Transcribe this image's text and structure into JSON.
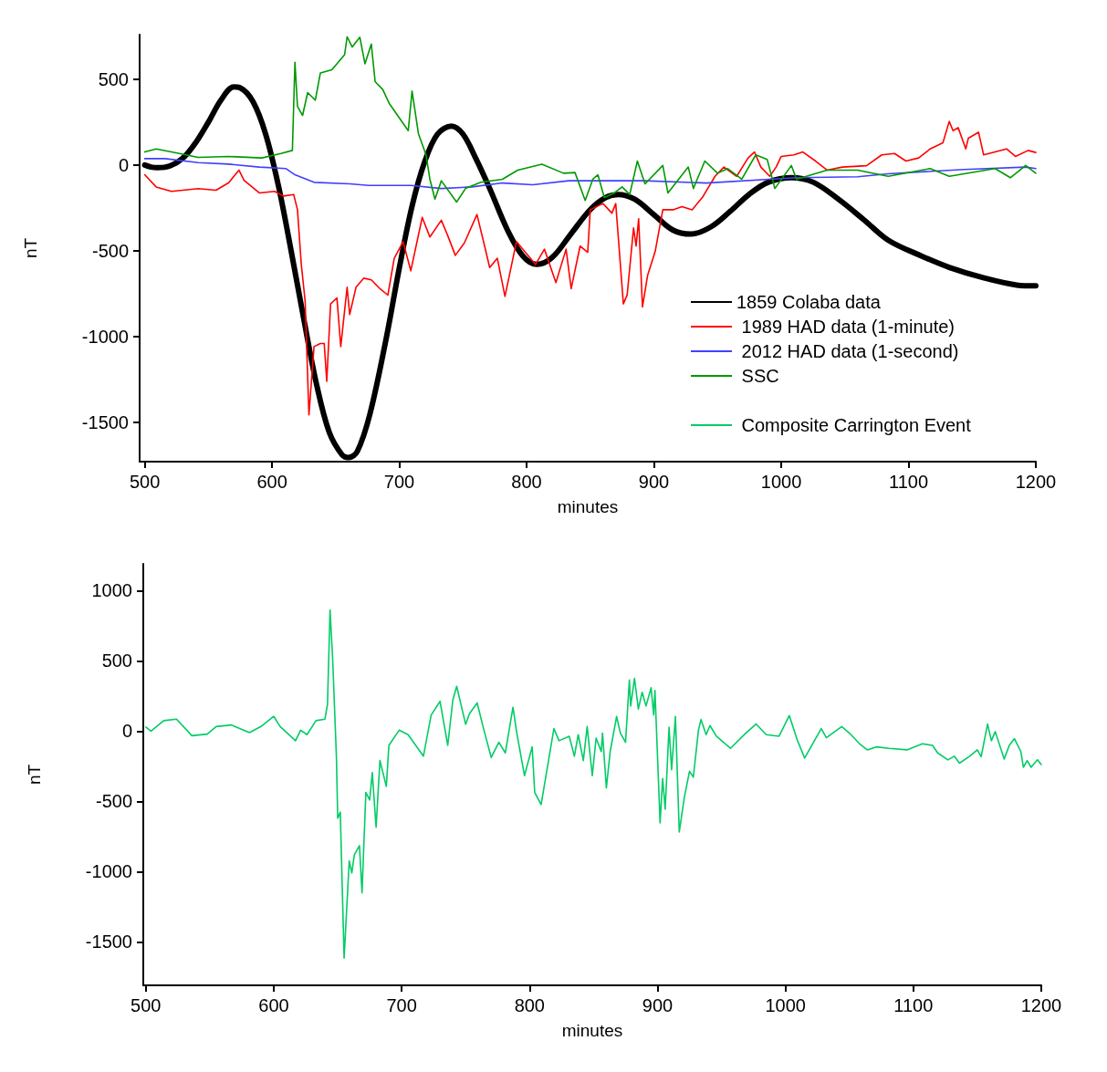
{
  "chart_data": [
    {
      "type": "line",
      "xlabel": "minutes",
      "ylabel": "nT",
      "xlim": [
        496,
        1200
      ],
      "ylim": [
        -1730,
        760
      ],
      "xticks": [
        500,
        600,
        700,
        800,
        900,
        1000,
        1100,
        1200
      ],
      "yticks": [
        -1500,
        -1000,
        -500,
        0,
        500
      ],
      "grid": false,
      "legend": "bottom right",
      "marker": "none",
      "line_style": "solid",
      "series": [
        {
          "name": "1859 Colaba data",
          "color": "#000000",
          "x": [
            500,
            505,
            510,
            520,
            530,
            540,
            550,
            560,
            570,
            575,
            585,
            595,
            605,
            615,
            625,
            635,
            645,
            655,
            660,
            667,
            677,
            690,
            700,
            710,
            720,
            730,
            741,
            750,
            760,
            771,
            785,
            797,
            808,
            820,
            835,
            850,
            862,
            872,
            885,
            900,
            915,
            929,
            945,
            960,
            975,
            990,
            1008,
            1025,
            1045,
            1065,
            1084,
            1110,
            1132,
            1160,
            1185,
            1200
          ],
          "values": [
            0,
            -12,
            -16,
            -5,
            40,
            130,
            250,
            380,
            455,
            450,
            370,
            180,
            -120,
            -500,
            -900,
            -1280,
            -1560,
            -1690,
            -1706,
            -1670,
            -1450,
            -1000,
            -600,
            -240,
            20,
            180,
            227,
            180,
            40,
            -137,
            -380,
            -530,
            -580,
            -540,
            -400,
            -260,
            -190,
            -172,
            -200,
            -290,
            -380,
            -403,
            -360,
            -270,
            -170,
            -100,
            -74,
            -100,
            -200,
            -320,
            -438,
            -530,
            -597,
            -660,
            -700,
            -705
          ]
        },
        {
          "name": " 1989 HAD data (1-minute)",
          "color": "#ff0000",
          "x": [
            500,
            509,
            521,
            542,
            556,
            566,
            574,
            578,
            590,
            602,
            609,
            617,
            620,
            623,
            626,
            629,
            633,
            638,
            641,
            643,
            646,
            651,
            654,
            659,
            661,
            666,
            672,
            678,
            685,
            691,
            696,
            703,
            709,
            718,
            724,
            733,
            738,
            744,
            751,
            761,
            767,
            771,
            777,
            783,
            792,
            799,
            807,
            814,
            823,
            831,
            835,
            842,
            848,
            850,
            860,
            867,
            870,
            876,
            879,
            884,
            886,
            888,
            891,
            895,
            901,
            907,
            915,
            922,
            930,
            938,
            948,
            955,
            965,
            974,
            979,
            984,
            991,
            996,
            1000,
            1010,
            1017,
            1027,
            1036,
            1048,
            1067,
            1079,
            1089,
            1098,
            1108,
            1117,
            1127,
            1132,
            1135,
            1139,
            1145,
            1147,
            1155,
            1159,
            1168,
            1177,
            1184,
            1194,
            1200
          ],
          "values": [
            -57,
            -128,
            -154,
            -138,
            -147,
            -103,
            -30,
            -89,
            -163,
            -154,
            -181,
            -172,
            -261,
            -580,
            -793,
            -1457,
            -1059,
            -1041,
            -1041,
            -1262,
            -810,
            -775,
            -1059,
            -713,
            -872,
            -713,
            -660,
            -670,
            -723,
            -759,
            -544,
            -447,
            -617,
            -305,
            -420,
            -322,
            -411,
            -527,
            -456,
            -289,
            -473,
            -598,
            -544,
            -766,
            -447,
            -509,
            -580,
            -491,
            -686,
            -491,
            -721,
            -473,
            -509,
            -261,
            -225,
            -281,
            -225,
            -810,
            -757,
            -367,
            -473,
            -314,
            -828,
            -645,
            -504,
            -261,
            -261,
            -243,
            -261,
            -190,
            -66,
            -12,
            -66,
            41,
            76,
            -12,
            -66,
            -12,
            50,
            59,
            76,
            23,
            -30,
            -12,
            -4,
            59,
            67,
            23,
            41,
            94,
            129,
            254,
            200,
            218,
            94,
            156,
            191,
            59,
            76,
            94,
            50,
            85,
            73
          ]
        },
        {
          "name": " 2012 HAD data (1-second)",
          "color": "#4040ff",
          "x": [
            500,
            516,
            542,
            566,
            590,
            611,
            618,
            633,
            661,
            676,
            709,
            733,
            757,
            781,
            805,
            833,
            893,
            941,
            1012,
            1060,
            1084,
            1144,
            1192,
            1200
          ],
          "values": [
            37,
            37,
            14,
            5,
            -12,
            -21,
            -57,
            -101,
            -110,
            -119,
            -119,
            -137,
            -128,
            -105,
            -115,
            -92,
            -92,
            -105,
            -74,
            -69,
            -51,
            -26,
            -12,
            -21
          ]
        },
        {
          "name": " SSC",
          "color": "#009900",
          "x": [
            500,
            509,
            521,
            542,
            566,
            592,
            607,
            616,
            618,
            620,
            624,
            628,
            634,
            638,
            647,
            657,
            659,
            663,
            669,
            673,
            678,
            681,
            687,
            692,
            707,
            710,
            715,
            721,
            724,
            728,
            733,
            745,
            752,
            764,
            781,
            793,
            812,
            829,
            838,
            846,
            852,
            856,
            861,
            869,
            875,
            881,
            887,
            893,
            907,
            911,
            927,
            931,
            940,
            950,
            958,
            969,
            980,
            989,
            995,
            1008,
            1012,
            1036,
            1060,
            1084,
            1117,
            1132,
            1168,
            1180,
            1192,
            1200
          ],
          "values": [
            76,
            94,
            76,
            44,
            50,
            41,
            67,
            85,
            599,
            342,
            289,
            422,
            378,
            537,
            555,
            643,
            748,
            688,
            745,
            590,
            705,
            486,
            440,
            360,
            200,
            431,
            183,
            59,
            -83,
            -199,
            -92,
            -216,
            -137,
            -101,
            -83,
            -30,
            5,
            -48,
            -44,
            -207,
            -83,
            -57,
            -190,
            -163,
            -128,
            -172,
            23,
            -110,
            -3,
            -163,
            -12,
            -137,
            23,
            -48,
            -21,
            -83,
            59,
            32,
            -137,
            -3,
            -83,
            -30,
            -30,
            -66,
            -21,
            -66,
            -21,
            -74,
            -3,
            -48
          ]
        }
      ]
    },
    {
      "type": "line",
      "xlabel": "minutes",
      "ylabel": "nT",
      "xlim": [
        498,
        1200
      ],
      "ylim": [
        -1810,
        1190
      ],
      "xticks": [
        500,
        600,
        700,
        800,
        900,
        1000,
        1100,
        1200
      ],
      "yticks": [
        -1500,
        -1000,
        -500,
        0,
        500,
        1000
      ],
      "grid": false,
      "legend": "top right",
      "marker": "none",
      "line_style": "solid",
      "series": [
        {
          "name": "Composite Carrington Event",
          "color": "#00cc66",
          "x": [
            500,
            504,
            514,
            524,
            536,
            548,
            555,
            567,
            581,
            590,
            600,
            605,
            617,
            621,
            626,
            633,
            640,
            642,
            644,
            646,
            649,
            650,
            652,
            655,
            659,
            661,
            663,
            667,
            669,
            672,
            675,
            677,
            680,
            683,
            688,
            690,
            698,
            705,
            717,
            723,
            730,
            736,
            740,
            743,
            750,
            753,
            759,
            764,
            770,
            776,
            781,
            787,
            790,
            796,
            802,
            804,
            809,
            819,
            823,
            831,
            835,
            838,
            842,
            845,
            849,
            852,
            856,
            857,
            860,
            863,
            868,
            871,
            875,
            878,
            879,
            882,
            885,
            888,
            891,
            895,
            897,
            898,
            902,
            904,
            906,
            909,
            911,
            914,
            917,
            921,
            925,
            928,
            932,
            934,
            938,
            941,
            946,
            957,
            969,
            977,
            985,
            995,
            1003,
            1009,
            1015,
            1028,
            1032,
            1044,
            1050,
            1058,
            1064,
            1071,
            1081,
            1095,
            1107,
            1115,
            1119,
            1127,
            1132,
            1136,
            1144,
            1150,
            1153,
            1158,
            1161,
            1164,
            1171,
            1175,
            1179,
            1184,
            1186,
            1189,
            1192,
            1197,
            1200
          ],
          "values": [
            28,
            -1,
            74,
            85,
            -33,
            -22,
            32,
            43,
            -11,
            32,
            104,
            32,
            -69,
            6,
            -26,
            74,
            85,
            190,
            862,
            524,
            -188,
            -621,
            -577,
            -1617,
            -924,
            -1010,
            -881,
            -816,
            -1152,
            -437,
            -491,
            -296,
            -685,
            -210,
            -394,
            -102,
            6,
            -26,
            -179,
            113,
            211,
            -102,
            221,
            318,
            48,
            124,
            200,
            17,
            -188,
            -80,
            -156,
            169,
            -15,
            -318,
            -113,
            -437,
            -524,
            17,
            -69,
            -37,
            -179,
            -26,
            -210,
            32,
            -318,
            -50,
            -146,
            -15,
            -405,
            -146,
            103,
            -15,
            -80,
            363,
            178,
            374,
            157,
            276,
            178,
            308,
            114,
            289,
            -654,
            -338,
            -556,
            28,
            -275,
            103,
            -719,
            -470,
            -286,
            -329,
            6,
            82,
            -26,
            39,
            -37,
            -123,
            -15,
            50,
            -26,
            -37,
            110,
            -58,
            -192,
            17,
            -48,
            32,
            -15,
            -91,
            -134,
            -113,
            -123,
            -134,
            -91,
            -102,
            -156,
            -205,
            -179,
            -229,
            -179,
            -134,
            -183,
            50,
            -69,
            -4,
            -199,
            -102,
            -54,
            -146,
            -258,
            -210,
            -258,
            -205,
            -238
          ]
        }
      ]
    }
  ]
}
